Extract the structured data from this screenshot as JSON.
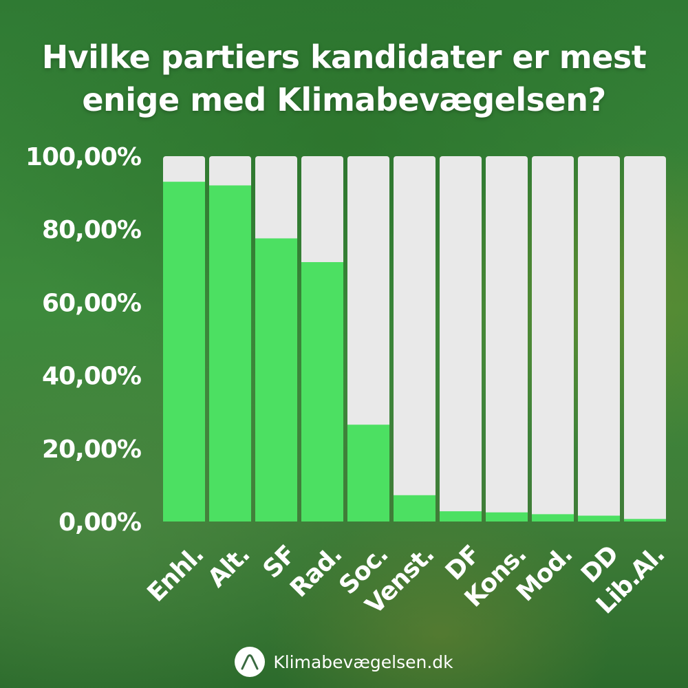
{
  "title_line1": "Hvilke partiers kandidater er mest",
  "title_line2": "enige med Klimabevægelsen?",
  "footer": {
    "site": "Klimabevægelsen.dk",
    "logo_icon": "mountain-logo-icon"
  },
  "colors": {
    "bar_fill": "#4ce062",
    "bar_track": "#e9e9e9",
    "text": "#ffffff"
  },
  "chart_data": {
    "type": "bar",
    "title": "Hvilke partiers kandidater er mest enige med Klimabevægelsen?",
    "categories": [
      "Enhl.",
      "Alt.",
      "SF",
      "Rad.",
      "Soc.",
      "Venst.",
      "DF",
      "Kons.",
      "Mod.",
      "DD",
      "Lib.Al."
    ],
    "values": [
      93,
      92,
      77.5,
      71,
      26.5,
      7.2,
      2.8,
      2.5,
      2,
      1.6,
      0.7
    ],
    "ylim": [
      0,
      100
    ],
    "yticks": [
      "0,00%",
      "20,00%",
      "40,00%",
      "60,00%",
      "80,00%",
      "100,00%"
    ],
    "xlabel": "",
    "ylabel": "",
    "grid": false,
    "legend": "none"
  }
}
